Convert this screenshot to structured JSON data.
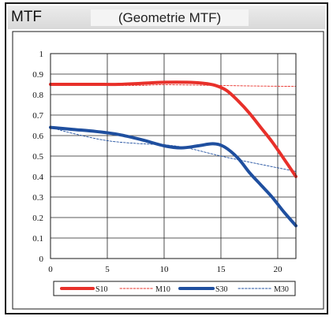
{
  "header": {
    "left_title": "MTF",
    "center_title": "(Geometrie MTF)"
  },
  "chart_data": {
    "type": "line",
    "title": "(Geometrie MTF)",
    "xlabel": "",
    "ylabel": "",
    "xlim": [
      0,
      21.6
    ],
    "ylim": [
      0,
      1
    ],
    "x_ticks": [
      "0",
      "5",
      "10",
      "15",
      "20"
    ],
    "y_ticks": [
      "0",
      "0.1",
      "0.2",
      "0.3",
      "0.4",
      "0.5",
      "0.6",
      "0.7",
      "0.8",
      "0.9",
      "1"
    ],
    "grid": true,
    "legend_position": "bottom",
    "series": [
      {
        "name": "S10",
        "color": "#e8302a",
        "style": "solid-thick",
        "points": [
          [
            0,
            0.85
          ],
          [
            2,
            0.85
          ],
          [
            4,
            0.85
          ],
          [
            6,
            0.85
          ],
          [
            8,
            0.855
          ],
          [
            10,
            0.86
          ],
          [
            12,
            0.86
          ],
          [
            13.5,
            0.855
          ],
          [
            14.5,
            0.845
          ],
          [
            15.5,
            0.82
          ],
          [
            16.5,
            0.77
          ],
          [
            17.5,
            0.71
          ],
          [
            18.5,
            0.64
          ],
          [
            19.5,
            0.57
          ],
          [
            20.5,
            0.49
          ],
          [
            21.6,
            0.4
          ]
        ]
      },
      {
        "name": "M10",
        "color": "#e8302a",
        "style": "dashed-thin",
        "points": [
          [
            0,
            0.85
          ],
          [
            4,
            0.845
          ],
          [
            8,
            0.845
          ],
          [
            10,
            0.848
          ],
          [
            14,
            0.845
          ],
          [
            18,
            0.842
          ],
          [
            21.6,
            0.84
          ]
        ]
      },
      {
        "name": "S30",
        "color": "#1f4f9f",
        "style": "solid-thick",
        "points": [
          [
            0,
            0.64
          ],
          [
            2,
            0.63
          ],
          [
            4,
            0.62
          ],
          [
            6,
            0.605
          ],
          [
            8,
            0.58
          ],
          [
            10,
            0.55
          ],
          [
            11.5,
            0.54
          ],
          [
            13,
            0.55
          ],
          [
            14.3,
            0.56
          ],
          [
            15.3,
            0.545
          ],
          [
            16.5,
            0.49
          ],
          [
            17.5,
            0.42
          ],
          [
            18.5,
            0.36
          ],
          [
            19.5,
            0.3
          ],
          [
            20.5,
            0.23
          ],
          [
            21.6,
            0.16
          ]
        ]
      },
      {
        "name": "M30",
        "color": "#1f4f9f",
        "style": "dashed-thin",
        "points": [
          [
            0,
            0.64
          ],
          [
            2,
            0.61
          ],
          [
            5,
            0.575
          ],
          [
            8,
            0.56
          ],
          [
            10,
            0.555
          ],
          [
            12,
            0.54
          ],
          [
            15,
            0.5
          ],
          [
            18,
            0.465
          ],
          [
            21.6,
            0.425
          ]
        ]
      }
    ]
  }
}
